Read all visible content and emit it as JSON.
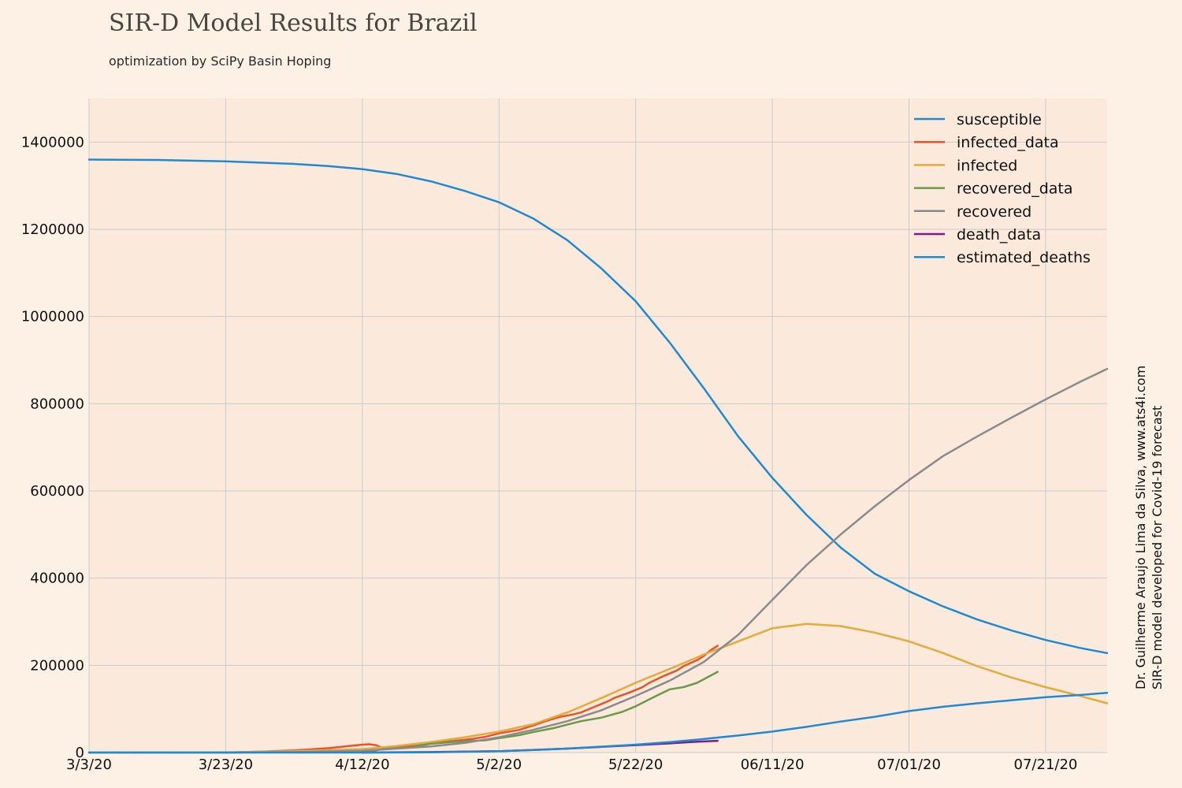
{
  "header": {
    "title": "SIR-D Model Results for Brazil",
    "subtitle": "optimization by SciPy Basin Hoping"
  },
  "credits": {
    "line1": "Dr. Guilherme Araujo Lima da Silva, www.ats4i.com",
    "line2": "SIR-D model developed for Covid-19 forecast"
  },
  "colors": {
    "background": "#fdf0e4",
    "plot_background": "#fbe9dc",
    "grid": "#cbcbcb"
  },
  "chart_data": {
    "type": "line",
    "title": "SIR-D Model Results for Brazil",
    "subtitle": "optimization by SciPy Basin Hoping",
    "xlabel": "",
    "ylabel": "",
    "x_unit": "days since 3/3/20",
    "xlim": [
      0,
      149
    ],
    "ylim": [
      0,
      1500000
    ],
    "grid": true,
    "legend_position": "top-right",
    "x_ticks": [
      {
        "day": 0,
        "label": "3/3/20"
      },
      {
        "day": 20,
        "label": "3/23/20"
      },
      {
        "day": 40,
        "label": "4/12/20"
      },
      {
        "day": 60,
        "label": "5/2/20"
      },
      {
        "day": 80,
        "label": "5/22/20"
      },
      {
        "day": 100,
        "label": "06/11/20"
      },
      {
        "day": 120,
        "label": "07/01/20"
      },
      {
        "day": 140,
        "label": "07/21/20"
      }
    ],
    "y_ticks": [
      {
        "value": 0,
        "label": "0"
      },
      {
        "value": 200000,
        "label": "200000"
      },
      {
        "value": 400000,
        "label": "400000"
      },
      {
        "value": 600000,
        "label": "600000"
      },
      {
        "value": 800000,
        "label": "800000"
      },
      {
        "value": 1000000,
        "label": "1000000"
      },
      {
        "value": 1200000,
        "label": "1200000"
      },
      {
        "value": 1400000,
        "label": "1400000"
      }
    ],
    "series": [
      {
        "name": "susceptible",
        "color": "#1f8ad2",
        "points": [
          [
            0,
            1360000
          ],
          [
            10,
            1359000
          ],
          [
            20,
            1356000
          ],
          [
            30,
            1350000
          ],
          [
            35,
            1345000
          ],
          [
            40,
            1338000
          ],
          [
            45,
            1327000
          ],
          [
            50,
            1310000
          ],
          [
            55,
            1288000
          ],
          [
            60,
            1262000
          ],
          [
            65,
            1225000
          ],
          [
            70,
            1175000
          ],
          [
            75,
            1110000
          ],
          [
            80,
            1035000
          ],
          [
            85,
            940000
          ],
          [
            90,
            835000
          ],
          [
            95,
            725000
          ],
          [
            100,
            630000
          ],
          [
            105,
            545000
          ],
          [
            110,
            470000
          ],
          [
            115,
            410000
          ],
          [
            120,
            370000
          ],
          [
            125,
            335000
          ],
          [
            130,
            305000
          ],
          [
            135,
            280000
          ],
          [
            140,
            258000
          ],
          [
            145,
            240000
          ],
          [
            149,
            228000
          ]
        ]
      },
      {
        "name": "infected_data",
        "color": "#e8532b",
        "points": [
          [
            20,
            0
          ],
          [
            25,
            2000
          ],
          [
            30,
            5000
          ],
          [
            33,
            8000
          ],
          [
            35,
            10000
          ],
          [
            38,
            15000
          ],
          [
            40,
            18000
          ],
          [
            41,
            19000
          ],
          [
            42,
            17000
          ],
          [
            43,
            10000
          ],
          [
            45,
            12000
          ],
          [
            48,
            16000
          ],
          [
            50,
            21000
          ],
          [
            53,
            26000
          ],
          [
            56,
            31000
          ],
          [
            58,
            36000
          ],
          [
            60,
            44000
          ],
          [
            63,
            52000
          ],
          [
            65,
            62000
          ],
          [
            67,
            73000
          ],
          [
            69,
            82000
          ],
          [
            71,
            88000
          ],
          [
            72,
            92000
          ],
          [
            74,
            105000
          ],
          [
            76,
            118000
          ],
          [
            77,
            126000
          ],
          [
            79,
            137000
          ],
          [
            81,
            150000
          ],
          [
            82,
            160000
          ],
          [
            84,
            175000
          ],
          [
            86,
            188000
          ],
          [
            87,
            198000
          ],
          [
            89,
            212000
          ],
          [
            90,
            222000
          ],
          [
            91,
            235000
          ],
          [
            92,
            245000
          ]
        ]
      },
      {
        "name": "infected",
        "color": "#e4ab3a",
        "points": [
          [
            0,
            0
          ],
          [
            20,
            500
          ],
          [
            30,
            3000
          ],
          [
            40,
            8000
          ],
          [
            45,
            15000
          ],
          [
            50,
            24000
          ],
          [
            55,
            35000
          ],
          [
            60,
            48000
          ],
          [
            65,
            65000
          ],
          [
            70,
            92000
          ],
          [
            75,
            125000
          ],
          [
            80,
            160000
          ],
          [
            85,
            192000
          ],
          [
            90,
            225000
          ],
          [
            95,
            255000
          ],
          [
            100,
            285000
          ],
          [
            105,
            295000
          ],
          [
            110,
            290000
          ],
          [
            115,
            275000
          ],
          [
            120,
            255000
          ],
          [
            125,
            228000
          ],
          [
            130,
            198000
          ],
          [
            135,
            172000
          ],
          [
            140,
            150000
          ],
          [
            145,
            130000
          ],
          [
            149,
            113000
          ]
        ]
      },
      {
        "name": "recovered_data",
        "color": "#6a9a4a",
        "points": [
          [
            40,
            0
          ],
          [
            43,
            8000
          ],
          [
            47,
            12000
          ],
          [
            50,
            20000
          ],
          [
            53,
            24000
          ],
          [
            55,
            26000
          ],
          [
            58,
            28000
          ],
          [
            60,
            33000
          ],
          [
            63,
            40000
          ],
          [
            65,
            47000
          ],
          [
            68,
            56000
          ],
          [
            70,
            64000
          ],
          [
            72,
            72000
          ],
          [
            75,
            80000
          ],
          [
            78,
            93000
          ],
          [
            80,
            106000
          ],
          [
            83,
            130000
          ],
          [
            85,
            145000
          ],
          [
            87,
            150000
          ],
          [
            89,
            160000
          ],
          [
            92,
            185000
          ]
        ]
      },
      {
        "name": "recovered",
        "color": "#8c8b8b",
        "points": [
          [
            0,
            0
          ],
          [
            20,
            0
          ],
          [
            30,
            1000
          ],
          [
            40,
            4000
          ],
          [
            50,
            14000
          ],
          [
            55,
            22000
          ],
          [
            60,
            35000
          ],
          [
            65,
            52000
          ],
          [
            70,
            72000
          ],
          [
            75,
            97000
          ],
          [
            80,
            130000
          ],
          [
            85,
            165000
          ],
          [
            90,
            208000
          ],
          [
            95,
            270000
          ],
          [
            100,
            350000
          ],
          [
            105,
            430000
          ],
          [
            110,
            500000
          ],
          [
            115,
            565000
          ],
          [
            120,
            625000
          ],
          [
            125,
            680000
          ],
          [
            130,
            725000
          ],
          [
            135,
            768000
          ],
          [
            140,
            810000
          ],
          [
            145,
            850000
          ],
          [
            149,
            880000
          ]
        ]
      },
      {
        "name": "death_data",
        "color": "#7b1f82",
        "points": [
          [
            40,
            0
          ],
          [
            50,
            1000
          ],
          [
            60,
            3000
          ],
          [
            65,
            6000
          ],
          [
            70,
            9000
          ],
          [
            75,
            13000
          ],
          [
            80,
            17000
          ],
          [
            85,
            21000
          ],
          [
            88,
            24000
          ],
          [
            92,
            27000
          ]
        ]
      },
      {
        "name": "estimated_deaths",
        "color": "#1f8ad2",
        "points": [
          [
            0,
            0
          ],
          [
            40,
            0
          ],
          [
            50,
            500
          ],
          [
            60,
            3000
          ],
          [
            70,
            9000
          ],
          [
            80,
            18000
          ],
          [
            85,
            24000
          ],
          [
            90,
            31000
          ],
          [
            95,
            39000
          ],
          [
            100,
            48000
          ],
          [
            105,
            59000
          ],
          [
            110,
            71000
          ],
          [
            115,
            82000
          ],
          [
            120,
            95000
          ],
          [
            125,
            105000
          ],
          [
            130,
            113000
          ],
          [
            135,
            120000
          ],
          [
            140,
            127000
          ],
          [
            145,
            132000
          ],
          [
            149,
            137000
          ]
        ]
      }
    ]
  }
}
